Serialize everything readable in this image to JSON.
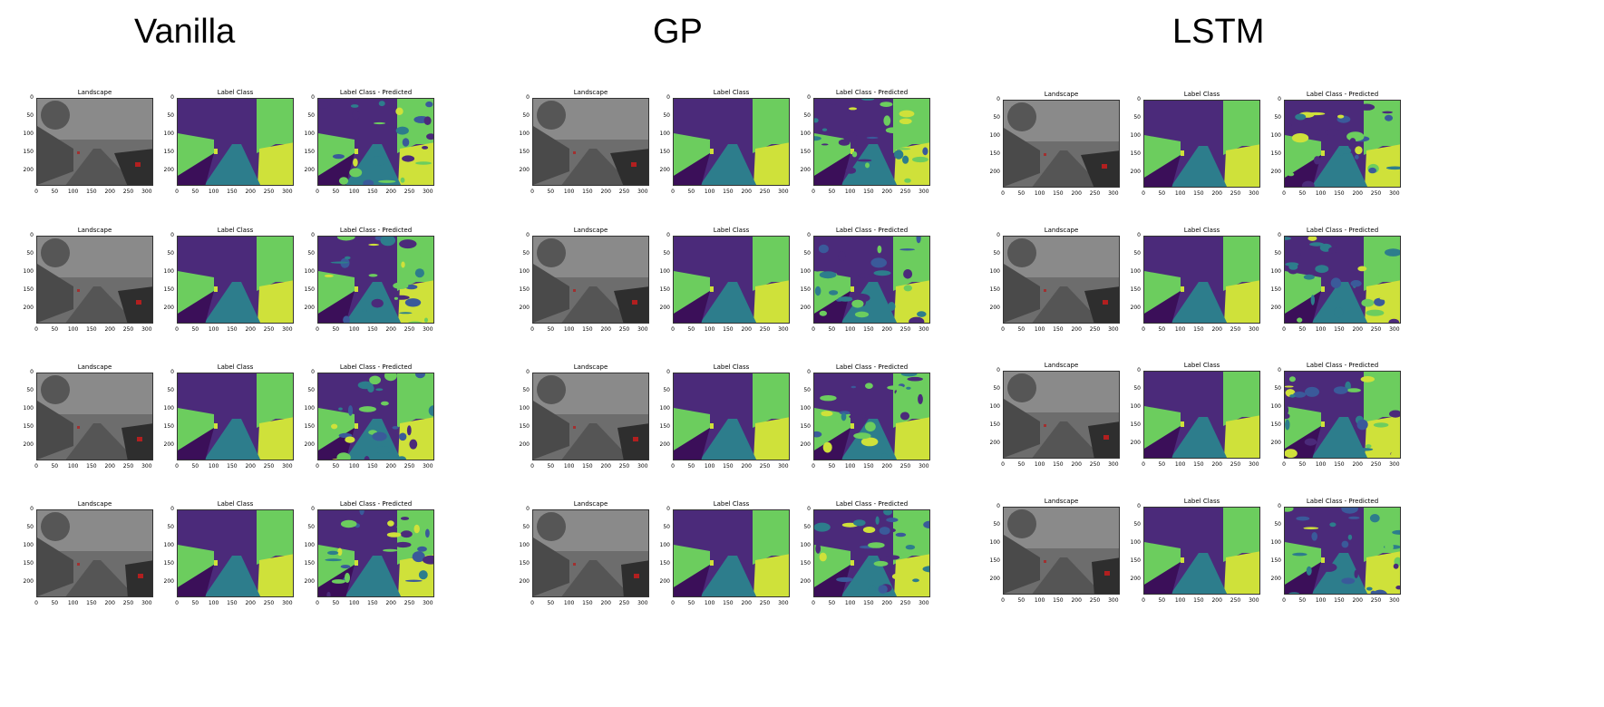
{
  "groups": [
    {
      "title": "Vanilla"
    },
    {
      "title": "GP"
    },
    {
      "title": "LSTM"
    }
  ],
  "panel_titles": [
    "Landscape",
    "Label Class",
    "Label Class - Predicted"
  ],
  "y_ticks": [
    "0",
    "50",
    "100",
    "150",
    "200"
  ],
  "x_ticks": [
    "0",
    "50",
    "100",
    "150",
    "200",
    "250",
    "300"
  ],
  "colors": {
    "purple": "#4b2a7a",
    "teal": "#2d7d8c",
    "green": "#6ccd5e",
    "yellow": "#cfe13a",
    "dark": "#3b0f59",
    "blue": "#3a5a9a"
  }
}
